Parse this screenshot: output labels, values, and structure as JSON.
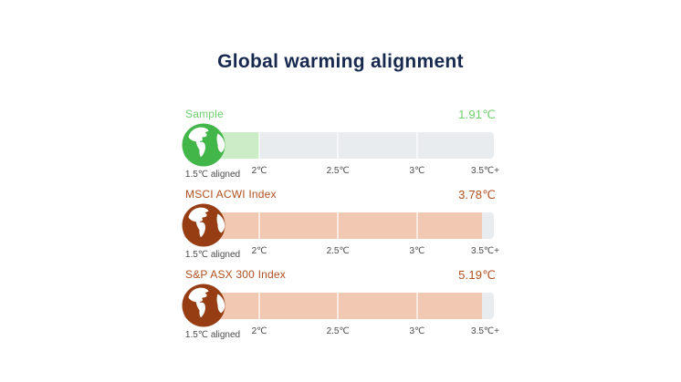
{
  "title": "Global warming alignment",
  "chart_data": {
    "type": "bar",
    "unit": "℃",
    "scale": {
      "min": 1.5,
      "max": 3.5,
      "start_label": "1.5℃ aligned",
      "ticks": [
        "2℃",
        "2.5℃",
        "3℃",
        "3.5℃+"
      ]
    },
    "series": [
      {
        "name": "Sample",
        "value": 1.91,
        "value_label": "1.91℃",
        "theme": "green",
        "fill_pct": 24.2
      },
      {
        "name": "MSCI ACWI Index",
        "value": 3.78,
        "value_label": "3.78℃",
        "theme": "rust",
        "fill_pct": 96.2
      },
      {
        "name": "S&P ASX 300 Index",
        "value": 5.19,
        "value_label": "5.19℃",
        "theme": "rust",
        "fill_pct": 96.2
      }
    ]
  },
  "colors": {
    "title": "#17294f",
    "green_text": "#6fd06f",
    "green_globe": "#43b649",
    "green_fill": "#cbedc5",
    "rust_text": "#b05020",
    "rust_globe": "#963d13",
    "rust_fill": "#f1c8b1",
    "track": "#e9ecef",
    "tick_text": "#4b4b4b"
  }
}
